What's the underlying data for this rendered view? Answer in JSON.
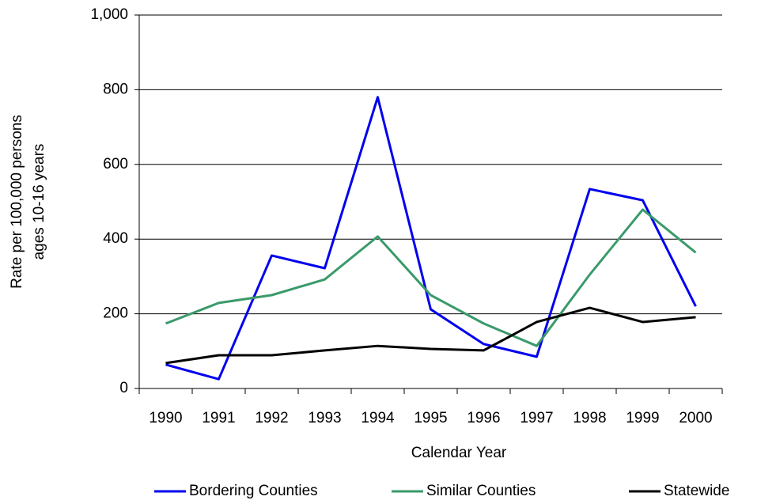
{
  "chart_data": {
    "type": "line",
    "xlabel": "Calendar Year",
    "ylabel": [
      "Rate per 100,000 persons",
      "ages 10-16 years"
    ],
    "categories": [
      "1990",
      "1991",
      "1992",
      "1993",
      "1994",
      "1995",
      "1996",
      "1997",
      "1998",
      "1999",
      "2000"
    ],
    "series": [
      {
        "name": "Bordering Counties",
        "color": "#0000ee",
        "values": [
          64,
          25,
          356,
          322,
          780,
          212,
          119,
          85,
          534,
          504,
          220
        ]
      },
      {
        "name": "Similar Counties",
        "color": "#3a9a6a",
        "values": [
          174,
          229,
          250,
          292,
          407,
          250,
          174,
          114,
          305,
          479,
          364
        ]
      },
      {
        "name": "Statewide",
        "color": "#000000",
        "values": [
          68,
          89,
          89,
          102,
          114,
          106,
          102,
          178,
          216,
          178,
          191
        ]
      }
    ],
    "ylim": [
      0,
      1000
    ],
    "yticks": [
      0,
      200,
      400,
      600,
      800,
      {
        "value": 1000,
        "label": "1,000"
      }
    ],
    "grid": true,
    "legend": "bottom"
  }
}
